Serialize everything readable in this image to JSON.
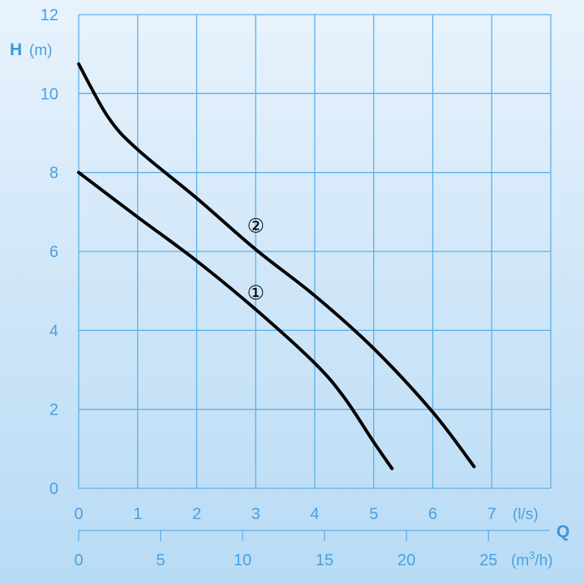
{
  "chart_data": {
    "type": "line",
    "title": "",
    "ylabel": {
      "symbol": "H",
      "unit": "(m)"
    },
    "xlabel": {
      "symbol": "Q",
      "unit_primary": "(l/s)",
      "unit_secondary_base": "(m",
      "unit_secondary_sup": "3",
      "unit_secondary_tail": "/h)"
    },
    "ylim": [
      0,
      12
    ],
    "xlim": [
      0,
      8
    ],
    "y_ticks": [
      "0",
      "2",
      "4",
      "6",
      "8",
      "10",
      "12"
    ],
    "x_ticks": [
      "0",
      "1",
      "2",
      "3",
      "4",
      "5",
      "6",
      "7"
    ],
    "x2_ticks": [
      "0",
      "5",
      "10",
      "15",
      "20",
      "25"
    ],
    "x2_per_x": 3.6,
    "grid": true,
    "colors": {
      "grid": "#5cb0e8",
      "text": "#4aa0e0",
      "curve": "#000000"
    },
    "series": [
      {
        "name": "①",
        "x": [
          0,
          1,
          2,
          3,
          4,
          4.5,
          5,
          5.31
        ],
        "y": [
          8.0,
          6.87,
          5.76,
          4.53,
          3.17,
          2.3,
          1.17,
          0.5
        ]
      },
      {
        "name": "②",
        "x": [
          0,
          0.5,
          1,
          2,
          3,
          4,
          5,
          6,
          6.7
        ],
        "y": [
          10.75,
          9.4,
          8.58,
          7.35,
          6.05,
          4.88,
          3.54,
          1.93,
          0.55
        ]
      }
    ],
    "annotations": [
      {
        "text": "②",
        "x": 3,
        "y": 6.67
      },
      {
        "text": "①",
        "x": 3,
        "y": 4.97
      }
    ]
  }
}
